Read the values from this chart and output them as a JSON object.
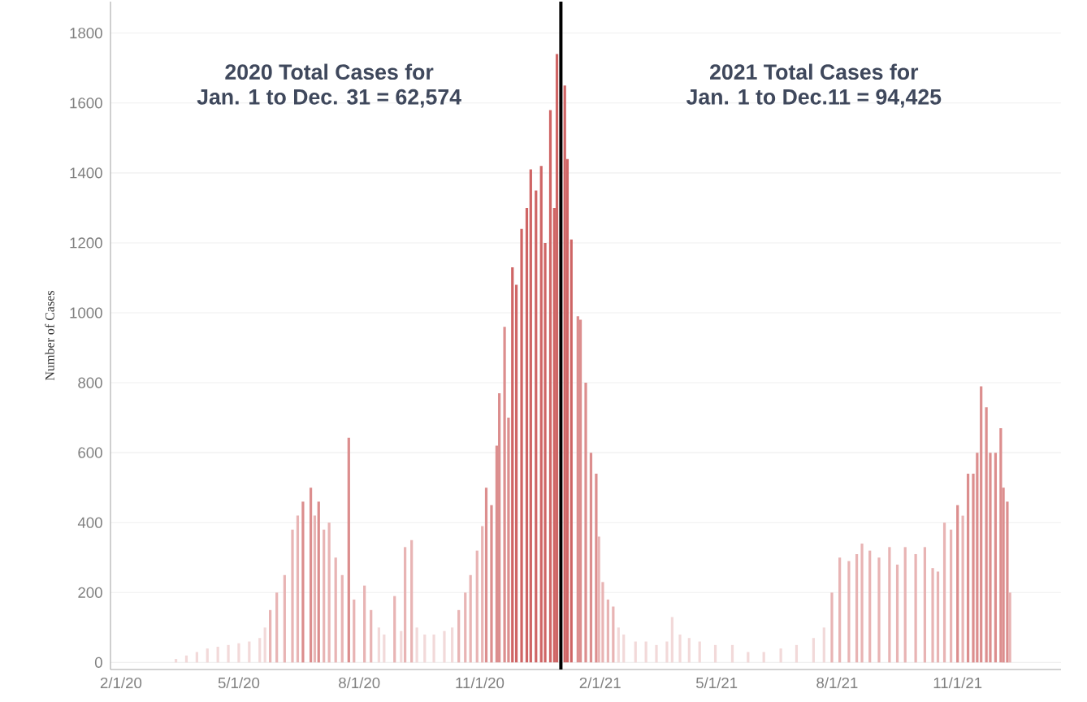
{
  "chart_data": {
    "type": "bar",
    "ylabel": "Number of Cases",
    "annotations": [
      "2020 Total Cases for",
      "Jan. 1 to Dec. 31 =  62,574",
      "2021 Total Cases for",
      "Jan. 1 to Dec.11 =  94,425"
    ],
    "x": [
      "2020-03-14",
      "2020-03-22",
      "2020-03-30",
      "2020-04-07",
      "2020-04-15",
      "2020-04-23",
      "2020-05-01",
      "2020-05-09",
      "2020-05-17",
      "2020-05-21",
      "2020-05-25",
      "2020-05-30",
      "2020-06-05",
      "2020-06-11",
      "2020-06-15",
      "2020-06-19",
      "2020-06-25",
      "2020-06-28",
      "2020-07-01",
      "2020-07-05",
      "2020-07-09",
      "2020-07-14",
      "2020-07-19",
      "2020-07-24",
      "2020-07-28",
      "2020-08-05",
      "2020-08-10",
      "2020-08-16",
      "2020-08-20",
      "2020-08-28",
      "2020-09-02",
      "2020-09-05",
      "2020-09-10",
      "2020-09-14",
      "2020-09-20",
      "2020-09-27",
      "2020-10-05",
      "2020-10-11",
      "2020-10-16",
      "2020-10-21",
      "2020-10-25",
      "2020-10-30",
      "2020-11-03",
      "2020-11-06",
      "2020-11-10",
      "2020-11-14",
      "2020-11-16",
      "2020-11-20",
      "2020-11-23",
      "2020-11-26",
      "2020-11-29",
      "2020-12-03",
      "2020-12-07",
      "2020-12-10",
      "2020-12-14",
      "2020-12-18",
      "2020-12-21",
      "2020-12-25",
      "2020-12-28",
      "2020-12-30",
      "2021-01-05",
      "2021-01-07",
      "2021-01-10",
      "2021-01-15",
      "2021-01-17",
      "2021-01-21",
      "2021-01-25",
      "2021-01-29",
      "2021-01-31",
      "2021-02-03",
      "2021-02-07",
      "2021-02-11",
      "2021-02-15",
      "2021-02-19",
      "2021-02-28",
      "2021-03-08",
      "2021-03-16",
      "2021-03-24",
      "2021-03-28",
      "2021-04-03",
      "2021-04-10",
      "2021-04-18",
      "2021-04-30",
      "2021-05-13",
      "2021-05-25",
      "2021-06-06",
      "2021-06-19",
      "2021-07-01",
      "2021-07-14",
      "2021-07-22",
      "2021-07-28",
      "2021-08-03",
      "2021-08-10",
      "2021-08-16",
      "2021-08-20",
      "2021-08-26",
      "2021-09-02",
      "2021-09-10",
      "2021-09-16",
      "2021-09-22",
      "2021-09-30",
      "2021-10-07",
      "2021-10-13",
      "2021-10-17",
      "2021-10-22",
      "2021-10-27",
      "2021-11-01",
      "2021-11-05",
      "2021-11-09",
      "2021-11-13",
      "2021-11-16",
      "2021-11-19",
      "2021-11-23",
      "2021-11-26",
      "2021-11-30",
      "2021-12-04",
      "2021-12-06",
      "2021-12-09",
      "2021-12-11"
    ],
    "values": [
      10,
      20,
      30,
      40,
      45,
      50,
      55,
      60,
      70,
      100,
      150,
      200,
      250,
      380,
      420,
      460,
      500,
      420,
      460,
      380,
      400,
      300,
      250,
      643,
      180,
      220,
      150,
      100,
      80,
      190,
      90,
      330,
      350,
      100,
      80,
      80,
      90,
      100,
      150,
      200,
      250,
      320,
      390,
      500,
      450,
      620,
      770,
      960,
      700,
      1130,
      1080,
      1240,
      1300,
      1410,
      1350,
      1420,
      1200,
      1580,
      1300,
      1740,
      1650,
      1440,
      1210,
      990,
      980,
      800,
      600,
      540,
      360,
      230,
      180,
      160,
      100,
      80,
      60,
      60,
      50,
      60,
      130,
      80,
      70,
      60,
      50,
      50,
      30,
      30,
      40,
      50,
      70,
      100,
      200,
      300,
      290,
      310,
      340,
      320,
      300,
      330,
      280,
      330,
      310,
      330,
      270,
      260,
      400,
      380,
      450,
      420,
      540,
      540,
      600,
      790,
      730,
      600,
      600,
      670,
      500,
      460,
      200
    ],
    "colors": [
      "#f2d9d9",
      "#f2d9d9",
      "#f2d9d9",
      "#f2d9d9",
      "#f2d9d9",
      "#f2d9d9",
      "#f2d9d9",
      "#f2d9d9",
      "#f2d9d9",
      "#f2d9d9",
      "#e8b4b4",
      "#e8b4b4",
      "#e8b4b4",
      "#e8b4b4",
      "#e8b4b4",
      "#dc8e8e",
      "#dc8e8e",
      "#e8b4b4",
      "#dc8e8e",
      "#e8b4b4",
      "#e8b4b4",
      "#e8b4b4",
      "#e8b4b4",
      "#dc8e8e",
      "#e8b4b4",
      "#e8b4b4",
      "#e8b4b4",
      "#f2d9d9",
      "#f2d9d9",
      "#e8b4b4",
      "#f2d9d9",
      "#e8b4b4",
      "#e8b4b4",
      "#f2d9d9",
      "#f2d9d9",
      "#f2d9d9",
      "#f2d9d9",
      "#f2d9d9",
      "#e8b4b4",
      "#e8b4b4",
      "#e8b4b4",
      "#e8b4b4",
      "#e8b4b4",
      "#dc8e8e",
      "#dc8e8e",
      "#dc8e8e",
      "#dc8e8e",
      "#dc8e8e",
      "#dc8e8e",
      "#cf6565",
      "#cf6565",
      "#cf6565",
      "#cf6565",
      "#cf6565",
      "#cf6565",
      "#cf6565",
      "#cf6565",
      "#cf6565",
      "#cf6565",
      "#cf6565",
      "#cf6565",
      "#cf6565",
      "#cf6565",
      "#dc8e8e",
      "#dc8e8e",
      "#dc8e8e",
      "#dc8e8e",
      "#dc8e8e",
      "#e8b4b4",
      "#e8b4b4",
      "#e8b4b4",
      "#e8b4b4",
      "#f2d9d9",
      "#f2d9d9",
      "#f2d9d9",
      "#f2d9d9",
      "#f2d9d9",
      "#f2d9d9",
      "#f2d9d9",
      "#f2d9d9",
      "#f2d9d9",
      "#f2d9d9",
      "#f2d9d9",
      "#f2d9d9",
      "#f2d9d9",
      "#f2d9d9",
      "#f2d9d9",
      "#f2d9d9",
      "#f2d9d9",
      "#f2d9d9",
      "#e8b4b4",
      "#e8b4b4",
      "#e8b4b4",
      "#e8b4b4",
      "#e8b4b4",
      "#e8b4b4",
      "#e8b4b4",
      "#e8b4b4",
      "#e8b4b4",
      "#e8b4b4",
      "#e8b4b4",
      "#e8b4b4",
      "#e8b4b4",
      "#e8b4b4",
      "#e8b4b4",
      "#e8b4b4",
      "#dc8e8e",
      "#e8b4b4",
      "#dc8e8e",
      "#dc8e8e",
      "#dc8e8e",
      "#dc8e8e",
      "#dc8e8e",
      "#dc8e8e",
      "#dc8e8e",
      "#dc8e8e",
      "#dc8e8e",
      "#dc8e8e",
      "#e8b4b4"
    ],
    "xlim": [
      "2020-01-24",
      "2022-01-19"
    ],
    "xticks": [
      {
        "value": "2020-02-01",
        "label": "2/1/20"
      },
      {
        "value": "2020-05-01",
        "label": "5/1/20"
      },
      {
        "value": "2020-08-01",
        "label": "8/1/20"
      },
      {
        "value": "2020-11-01",
        "label": "11/1/20"
      },
      {
        "value": "2021-02-01",
        "label": "2/1/21"
      },
      {
        "value": "2021-05-01",
        "label": "5/1/21"
      },
      {
        "value": "2021-08-01",
        "label": "8/1/21"
      },
      {
        "value": "2021-11-01",
        "label": "11/1/21"
      }
    ],
    "ylim": [
      -20,
      1890
    ],
    "yticks": [
      0,
      200,
      400,
      600,
      800,
      1000,
      1200,
      1400,
      1600,
      1800
    ],
    "ref_lines": [
      {
        "axis": "x",
        "value": "2021-01-02",
        "color": "#000000"
      }
    ],
    "grid": "y"
  }
}
